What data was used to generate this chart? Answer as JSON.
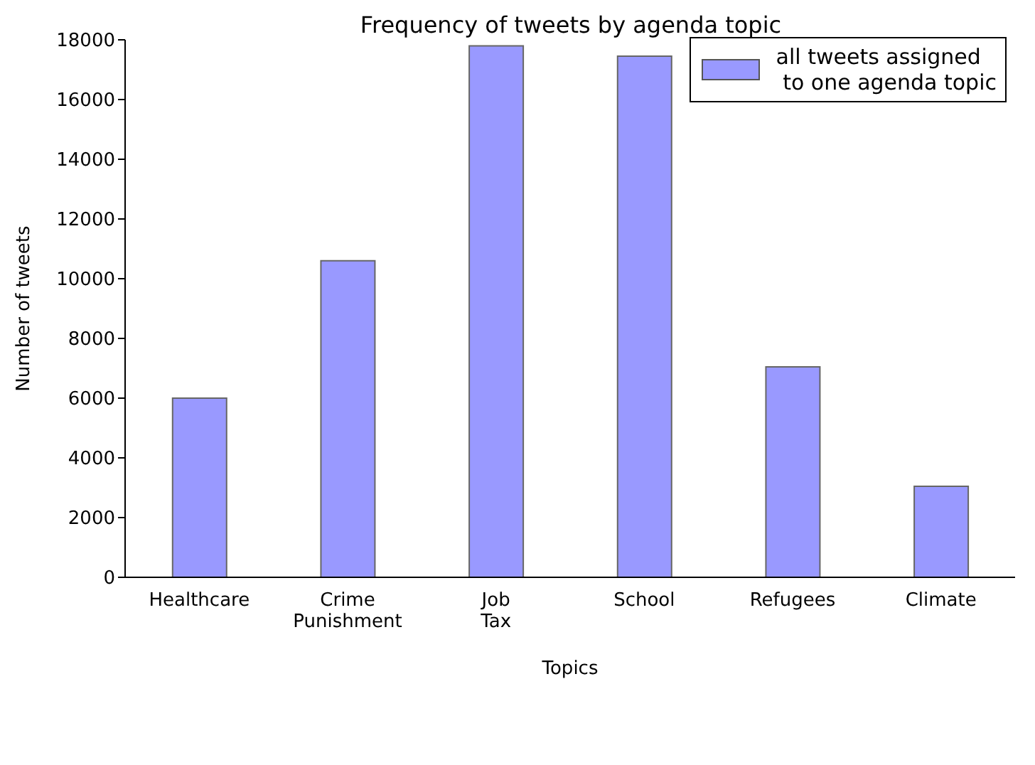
{
  "chart_data": {
    "type": "bar",
    "title": "Frequency of tweets by agenda topic",
    "xlabel": "Topics",
    "ylabel": "Number of tweets",
    "categories": [
      "Healthcare",
      "Crime\nPunishment",
      "Job\nTax",
      "School",
      "Refugees",
      "Climate"
    ],
    "series": [
      {
        "name": "all tweets assigned\n to one agenda topic",
        "color": "#9999ff",
        "values": [
          6000,
          10600,
          17800,
          17450,
          7050,
          3050
        ]
      }
    ],
    "ylim": [
      0,
      18000
    ],
    "yticks": [
      0,
      2000,
      4000,
      6000,
      8000,
      10000,
      12000,
      14000,
      16000,
      18000
    ],
    "legend": "top right"
  }
}
